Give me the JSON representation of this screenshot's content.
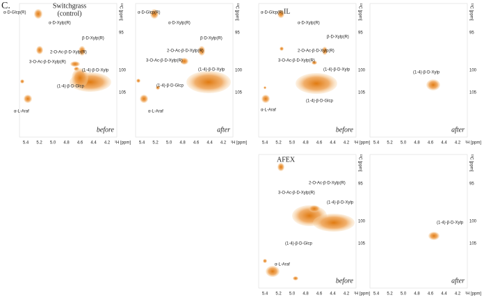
{
  "figure_label": "C.",
  "axes": {
    "x_ticks": [
      "5.4",
      "5.2",
      "5.0",
      "4.8",
      "4.6",
      "4.4",
      "4.2"
    ],
    "x_unit": "¹H [ppm]",
    "y_ticks": [
      "95",
      "100",
      "105"
    ],
    "y_unit": "¹³C [ppm]"
  },
  "panels": [
    {
      "title": [
        "Switchgrass",
        "(control)"
      ],
      "caption": "before",
      "labels": [
        "α-D-Glcp(R)",
        "α-D-Xylp(R)",
        "β-D-Xylp(R)",
        "2-O-Ac-β-D-Xylp(R)",
        "3-O-Ac-β-D-Xylp(R)",
        "(1-4)-β-D-Xylp",
        "(1-4)-β-D-Glcp",
        "α-L-Araf"
      ]
    },
    {
      "title": [],
      "caption": "after",
      "labels": [
        "α-D-Glcp(R)",
        "α-D-Xylp(R)",
        "β-D-Xylp(R)",
        "2-O-Ac-β-D-Xylp(R)",
        "3-O-Ac-β-D-Xylp(R)",
        "(1-4)-β-D-Xylp",
        "(1-4)-β-D-Glcp",
        "α-L-Araf"
      ]
    },
    {
      "title": [
        "IL"
      ],
      "caption": "before",
      "labels": [
        "α-D-Glcp(R)",
        "α-D-Xylp(R)",
        "β-D-Xylp(R)",
        "2-O-Ac-β-D-Xylp(R)",
        "3-O-Ac-β-D-Xylp(R)",
        "(1-4)-β-D-Xylp",
        "(1-4)-β-D-Glcp",
        "α-L-Araf"
      ]
    },
    {
      "title": [],
      "caption": "after",
      "labels": [
        "(1-4)-β-D-Xylp"
      ]
    },
    {
      "title": [
        "AFEX"
      ],
      "caption": "before",
      "labels": [
        "2-O-Ac-β-D-Xylp(R)",
        "3-O-Ac-β-D-Xylp(R)",
        "(1-4)-β-D-Xylp",
        "(1-4)-β-D-Glcp",
        "α-L-Araf"
      ]
    },
    {
      "title": [],
      "caption": "after",
      "labels": [
        "(1-4)-β-D-Xylp"
      ]
    }
  ]
}
